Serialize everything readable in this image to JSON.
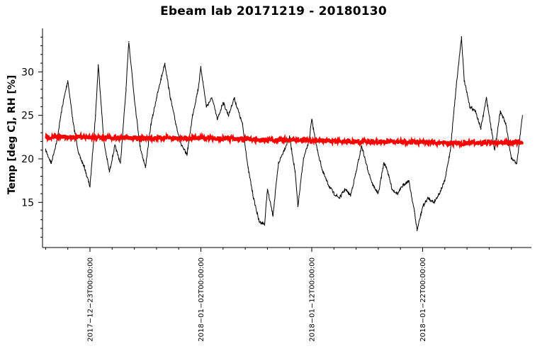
{
  "chart_data": {
    "type": "line",
    "title": "Ebeam lab 20171219 - 20180130",
    "xlabel": "",
    "ylabel": "Temp [deg C], RH [%]",
    "x_range": [
      "2017-12-19T00:00:00",
      "2018-01-30T00:00:00"
    ],
    "ylim": [
      10.5,
      35
    ],
    "yticks": [
      15,
      20,
      25,
      30
    ],
    "xticks": [
      "2017-12-23T00:00:00",
      "2018-01-02T00:00:00",
      "2018-01-12T00:00:00",
      "2018-01-22T00:00:00"
    ],
    "grid": false,
    "series": [
      {
        "color": "#000000",
        "points": [
          [
            "2017-12-19T00:00:00",
            21.0
          ],
          [
            "2017-12-19T12:00:00",
            19.5
          ],
          [
            "2017-12-20T00:00:00",
            22.0
          ],
          [
            "2017-12-20T12:00:00",
            26.0
          ],
          [
            "2017-12-21T00:00:00",
            29.0
          ],
          [
            "2017-12-21T12:00:00",
            24.0
          ],
          [
            "2017-12-22T00:00:00",
            20.5
          ],
          [
            "2017-12-22T12:00:00",
            19.0
          ],
          [
            "2017-12-23T00:00:00",
            16.8
          ],
          [
            "2017-12-23T12:00:00",
            25.0
          ],
          [
            "2017-12-23T18:00:00",
            30.8
          ],
          [
            "2017-12-24T06:00:00",
            22.0
          ],
          [
            "2017-12-24T18:00:00",
            18.5
          ],
          [
            "2017-12-25T06:00:00",
            21.5
          ],
          [
            "2017-12-25T18:00:00",
            19.5
          ],
          [
            "2017-12-26T06:00:00",
            28.0
          ],
          [
            "2017-12-26T12:00:00",
            33.5
          ],
          [
            "2017-12-27T00:00:00",
            27.0
          ],
          [
            "2017-12-27T12:00:00",
            21.5
          ],
          [
            "2017-12-28T00:00:00",
            19.0
          ],
          [
            "2017-12-28T12:00:00",
            24.0
          ],
          [
            "2017-12-29T00:00:00",
            27.0
          ],
          [
            "2017-12-29T18:00:00",
            31.0
          ],
          [
            "2017-12-30T06:00:00",
            27.0
          ],
          [
            "2017-12-30T18:00:00",
            24.0
          ],
          [
            "2017-12-31T06:00:00",
            21.5
          ],
          [
            "2017-12-31T18:00:00",
            20.5
          ],
          [
            "2018-01-01T06:00:00",
            25.0
          ],
          [
            "2018-01-01T18:00:00",
            28.0
          ],
          [
            "2018-01-02T00:00:00",
            30.5
          ],
          [
            "2018-01-02T12:00:00",
            26.0
          ],
          [
            "2018-01-03T00:00:00",
            27.0
          ],
          [
            "2018-01-03T12:00:00",
            24.5
          ],
          [
            "2018-01-04T00:00:00",
            26.5
          ],
          [
            "2018-01-04T12:00:00",
            25.0
          ],
          [
            "2018-01-05T00:00:00",
            27.0
          ],
          [
            "2018-01-05T18:00:00",
            24.0
          ],
          [
            "2018-01-06T06:00:00",
            19.0
          ],
          [
            "2018-01-06T18:00:00",
            15.5
          ],
          [
            "2018-01-07T06:00:00",
            12.8
          ],
          [
            "2018-01-07T18:00:00",
            12.5
          ],
          [
            "2018-01-08T00:00:00",
            16.5
          ],
          [
            "2018-01-08T12:00:00",
            13.5
          ],
          [
            "2018-01-09T00:00:00",
            19.5
          ],
          [
            "2018-01-09T12:00:00",
            21.0
          ],
          [
            "2018-01-10T00:00:00",
            22.5
          ],
          [
            "2018-01-10T12:00:00",
            18.5
          ],
          [
            "2018-01-10T18:00:00",
            14.5
          ],
          [
            "2018-01-11T06:00:00",
            20.0
          ],
          [
            "2018-01-11T18:00:00",
            22.0
          ],
          [
            "2018-01-12T00:00:00",
            24.5
          ],
          [
            "2018-01-12T12:00:00",
            21.0
          ],
          [
            "2018-01-13T00:00:00",
            18.5
          ],
          [
            "2018-01-13T12:00:00",
            17.0
          ],
          [
            "2018-01-14T00:00:00",
            16.0
          ],
          [
            "2018-01-14T12:00:00",
            15.5
          ],
          [
            "2018-01-15T00:00:00",
            16.5
          ],
          [
            "2018-01-15T12:00:00",
            15.8
          ],
          [
            "2018-01-16T00:00:00",
            18.5
          ],
          [
            "2018-01-16T12:00:00",
            21.5
          ],
          [
            "2018-01-17T00:00:00",
            19.0
          ],
          [
            "2018-01-17T12:00:00",
            17.0
          ],
          [
            "2018-01-18T00:00:00",
            16.0
          ],
          [
            "2018-01-18T12:00:00",
            19.5
          ],
          [
            "2018-01-18T18:00:00",
            19.0
          ],
          [
            "2018-01-19T06:00:00",
            16.5
          ],
          [
            "2018-01-19T18:00:00",
            16.0
          ],
          [
            "2018-01-20T06:00:00",
            17.0
          ],
          [
            "2018-01-20T18:00:00",
            17.5
          ],
          [
            "2018-01-21T06:00:00",
            14.0
          ],
          [
            "2018-01-21T12:00:00",
            11.8
          ],
          [
            "2018-01-22T00:00:00",
            14.5
          ],
          [
            "2018-01-22T12:00:00",
            15.5
          ],
          [
            "2018-01-23T00:00:00",
            15.0
          ],
          [
            "2018-01-23T12:00:00",
            16.0
          ],
          [
            "2018-01-24T00:00:00",
            17.5
          ],
          [
            "2018-01-24T12:00:00",
            21.0
          ],
          [
            "2018-01-25T00:00:00",
            28.0
          ],
          [
            "2018-01-25T12:00:00",
            34.0
          ],
          [
            "2018-01-25T18:00:00",
            29.0
          ],
          [
            "2018-01-26T06:00:00",
            26.0
          ],
          [
            "2018-01-26T18:00:00",
            25.5
          ],
          [
            "2018-01-27T06:00:00",
            23.5
          ],
          [
            "2018-01-27T18:00:00",
            27.0
          ],
          [
            "2018-01-28T06:00:00",
            23.0
          ],
          [
            "2018-01-28T12:00:00",
            21.0
          ],
          [
            "2018-01-29T00:00:00",
            25.5
          ],
          [
            "2018-01-29T12:00:00",
            24.0
          ],
          [
            "2018-01-30T00:00:00",
            20.0
          ],
          [
            "2018-01-30T12:00:00",
            19.5
          ],
          [
            "2018-01-31T00:00:00",
            25.0
          ]
        ]
      },
      {
        "color": "#ff0000",
        "points": [
          [
            "2017-12-19T00:00:00",
            22.5
          ],
          [
            "2017-12-23T00:00:00",
            22.5
          ],
          [
            "2017-12-28T00:00:00",
            22.4
          ],
          [
            "2018-01-02T00:00:00",
            22.4
          ],
          [
            "2018-01-07T00:00:00",
            22.2
          ],
          [
            "2018-01-12T00:00:00",
            22.1
          ],
          [
            "2018-01-17T00:00:00",
            22.0
          ],
          [
            "2018-01-22T00:00:00",
            21.9
          ],
          [
            "2018-01-25T00:00:00",
            21.8
          ],
          [
            "2018-01-31T00:00:00",
            21.9
          ]
        ]
      }
    ]
  }
}
